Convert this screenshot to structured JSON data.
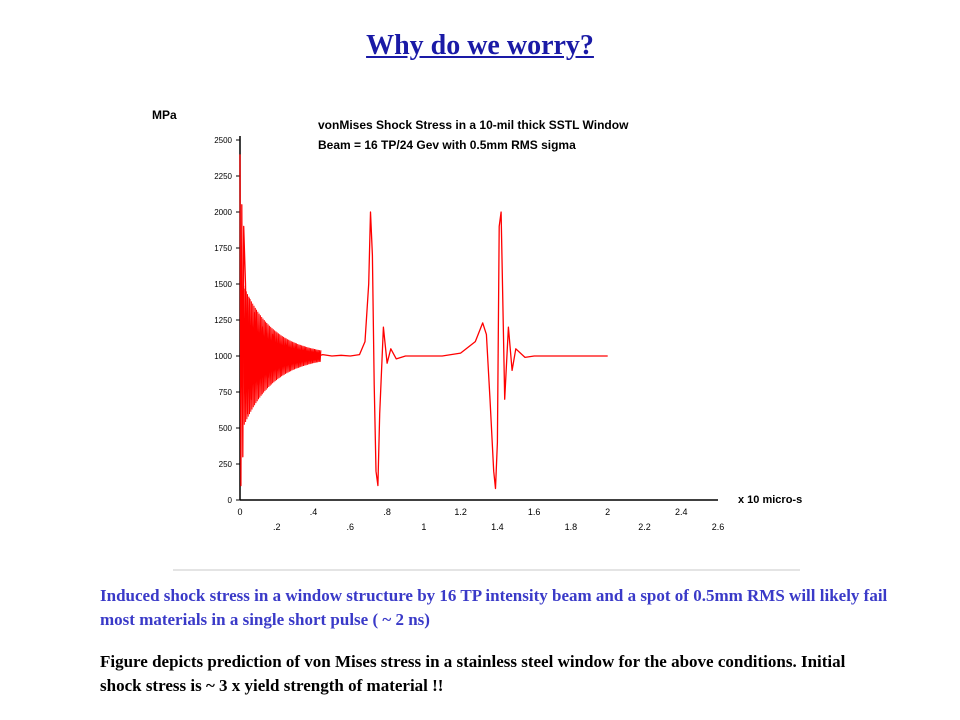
{
  "slide": {
    "title": "Why do we worry?",
    "caption_primary": "Induced shock stress in a window structure by 16 TP intensity beam and a spot of 0.5mm RMS will likely fail most materials in a single short pulse ( ~ 2 ns)",
    "caption_secondary": "Figure depicts prediction of von Mises stress in a stainless steel window for the above conditions. Initial shock stress is ~ 3 x yield strength of material !!"
  },
  "colors": {
    "title": "#1a1aa6",
    "caption_primary": "#3a3ac8",
    "series": "#ff0000",
    "axes": "#000000",
    "frame": "#c8c8c8"
  },
  "chart_data": {
    "type": "line",
    "title_lines": [
      "vonMises Shock Stress in a 10-mil thick SSTL Window",
      "Beam = 16 TP/24 Gev with 0.5mm RMS sigma"
    ],
    "ylabel": "MPa",
    "xlabel": "x 10 micro-s",
    "xlim": [
      0,
      2.6
    ],
    "ylim": [
      0,
      2500
    ],
    "x_ticks_upper": [
      "0",
      ".4",
      ".8",
      "1.2",
      "1.6",
      "2",
      "2.4"
    ],
    "x_ticks_lower": [
      ".2",
      ".6",
      "1",
      "1.4",
      "1.8",
      "2.2",
      "2.6"
    ],
    "y_ticks": [
      "0",
      "250",
      "500",
      "750",
      "1000",
      "1250",
      "1500",
      "1750",
      "2000",
      "2250",
      "2500"
    ],
    "grid": false,
    "legend": "none",
    "series": [
      {
        "x": [
          0,
          0.005,
          0.01,
          0.015,
          0.02,
          0.03,
          0.04,
          0.05,
          0.06,
          0.08,
          0.1,
          0.12,
          0.15,
          0.18,
          0.2,
          0.25,
          0.3,
          0.35,
          0.4,
          0.45,
          0.5,
          0.55,
          0.6,
          0.65,
          0.68,
          0.7,
          0.71,
          0.72,
          0.73,
          0.74,
          0.75,
          0.76,
          0.78,
          0.8,
          0.82,
          0.85,
          0.9,
          1.0,
          1.1,
          1.2,
          1.28,
          1.32,
          1.34,
          1.36,
          1.38,
          1.39,
          1.4,
          1.41,
          1.42,
          1.44,
          1.46,
          1.48,
          1.5,
          1.55,
          1.6,
          1.7,
          1.8,
          1.9,
          2.0
        ],
        "y": [
          2400,
          100,
          2050,
          300,
          1900,
          1500,
          600,
          1400,
          700,
          1300,
          800,
          1200,
          850,
          1150,
          900,
          1080,
          950,
          1040,
          990,
          1010,
          1000,
          1005,
          1000,
          1010,
          1100,
          1500,
          2000,
          1700,
          800,
          200,
          100,
          600,
          1200,
          950,
          1050,
          980,
          1000,
          1000,
          1000,
          1020,
          1100,
          1230,
          1150,
          700,
          200,
          80,
          400,
          1900,
          2000,
          700,
          1200,
          900,
          1050,
          990,
          1000,
          1000,
          1000,
          1000,
          1000
        ]
      }
    ]
  }
}
